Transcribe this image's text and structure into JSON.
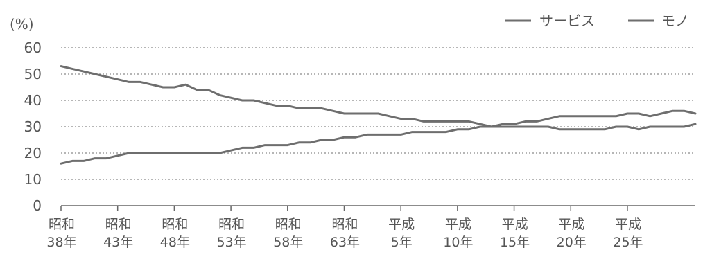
{
  "chart_data": {
    "type": "line",
    "title": "",
    "ylabel": "(%)",
    "xlabel": "",
    "ylim": [
      0,
      60
    ],
    "yticks": [
      "0",
      "10",
      "20",
      "30",
      "40",
      "50",
      "60"
    ],
    "grid": true,
    "legend_position": "top-right",
    "x_range": [
      "昭和38年",
      "平成27年"
    ],
    "x_tick_labels": [
      {
        "line1": "昭和",
        "line2": "38年"
      },
      {
        "line1": "昭和",
        "line2": "43年"
      },
      {
        "line1": "昭和",
        "line2": "48年"
      },
      {
        "line1": "昭和",
        "line2": "53年"
      },
      {
        "line1": "昭和",
        "line2": "58年"
      },
      {
        "line1": "昭和",
        "line2": "63年"
      },
      {
        "line1": "平成",
        "line2": "5年"
      },
      {
        "line1": "平成",
        "line2": "10年"
      },
      {
        "line1": "平成",
        "line2": "15年"
      },
      {
        "line1": "平成",
        "line2": "20年"
      },
      {
        "line1": "平成",
        "line2": "25年"
      }
    ],
    "series": [
      {
        "name": "サービス",
        "color": "#6e6e6e",
        "values": [
          16,
          17,
          17,
          18,
          18,
          19,
          20,
          20,
          20,
          20,
          20,
          20,
          20,
          20,
          20,
          21,
          22,
          22,
          23,
          23,
          23,
          24,
          24,
          25,
          25,
          26,
          26,
          27,
          27,
          27,
          27,
          28,
          28,
          28,
          28,
          29,
          29,
          30,
          30,
          31,
          31,
          32,
          32,
          33,
          34,
          34,
          34,
          34,
          34,
          34,
          35,
          35,
          34,
          35,
          36,
          36,
          35
        ]
      },
      {
        "name": "モノ",
        "color": "#6e6e6e",
        "values": [
          53,
          52,
          51,
          50,
          49,
          48,
          47,
          47,
          46,
          45,
          45,
          46,
          44,
          44,
          42,
          41,
          40,
          40,
          39,
          38,
          38,
          37,
          37,
          37,
          36,
          35,
          35,
          35,
          35,
          34,
          33,
          33,
          32,
          32,
          32,
          32,
          32,
          31,
          30,
          30,
          30,
          30,
          30,
          30,
          29,
          29,
          29,
          29,
          29,
          30,
          30,
          29,
          30,
          30,
          30,
          30,
          31
        ]
      }
    ]
  }
}
